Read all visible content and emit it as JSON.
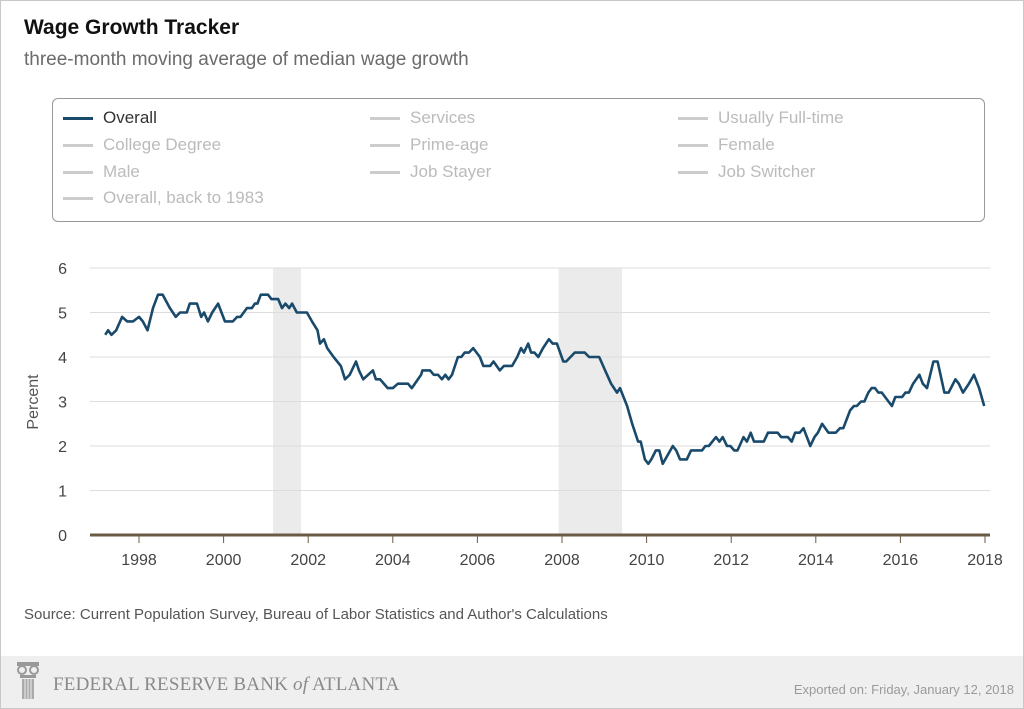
{
  "header": {
    "title": "Wage Growth Tracker",
    "subtitle": "three-month moving average of median wage growth"
  },
  "legend": {
    "items": [
      {
        "label": "Overall",
        "active": true
      },
      {
        "label": "Services",
        "active": false
      },
      {
        "label": "Usually Full-time",
        "active": false
      },
      {
        "label": "College Degree",
        "active": false
      },
      {
        "label": "Prime-age",
        "active": false
      },
      {
        "label": "Female",
        "active": false
      },
      {
        "label": "Male",
        "active": false
      },
      {
        "label": "Job Stayer",
        "active": false
      },
      {
        "label": "Job Switcher",
        "active": false
      },
      {
        "label": "Overall, back to 1983",
        "active": false
      }
    ]
  },
  "source": "Source: Current Population Survey, Bureau of Labor Statistics and Author's Calculations",
  "footer": {
    "logo": "FEDERAL RESERVE BANK of ATLANTA",
    "exported": "Exported on: Friday, January 12, 2018"
  },
  "colors": {
    "line": "#1a4a6b",
    "recession": "#ebebeb",
    "baseline": "#6b5a45",
    "grid": "#dddddd"
  },
  "chart_data": {
    "type": "line",
    "ylabel": "Percent",
    "xlabel": "",
    "ylim": [
      0,
      6
    ],
    "xlim": [
      1996.8,
      2018.1
    ],
    "yticks": [
      "0",
      "1",
      "2",
      "3",
      "4",
      "5",
      "6"
    ],
    "xticks": [
      "1998",
      "2000",
      "2002",
      "2004",
      "2006",
      "2008",
      "2010",
      "2012",
      "2014",
      "2016",
      "2018"
    ],
    "grid": true,
    "recessions": [
      [
        2001.17,
        2001.83
      ],
      [
        2007.92,
        2009.42
      ]
    ],
    "series": [
      {
        "name": "Overall",
        "x": [
          1997.2,
          1997.27,
          1997.35,
          1997.46,
          1997.6,
          1997.72,
          1997.86,
          1998.0,
          1998.09,
          1998.2,
          1998.33,
          1998.45,
          1998.56,
          1998.73,
          1998.87,
          1998.97,
          1999.13,
          1999.2,
          1999.37,
          1999.47,
          1999.54,
          1999.63,
          1999.73,
          1999.87,
          2000.03,
          2000.22,
          2000.32,
          2000.4,
          2000.55,
          2000.67,
          2000.74,
          2000.8,
          2000.88,
          2001.05,
          2001.13,
          2001.29,
          2001.38,
          2001.46,
          2001.55,
          2001.62,
          2001.73,
          2001.97,
          2002.09,
          2002.22,
          2002.28,
          2002.37,
          2002.45,
          2002.6,
          2002.77,
          2002.87,
          2002.98,
          2003.13,
          2003.2,
          2003.3,
          2003.53,
          2003.6,
          2003.7,
          2003.88,
          2004.0,
          2004.12,
          2004.36,
          2004.45,
          2004.67,
          2004.7,
          2004.88,
          2004.97,
          2005.07,
          2005.16,
          2005.24,
          2005.32,
          2005.4,
          2005.54,
          2005.62,
          2005.7,
          2005.8,
          2005.9,
          2006.06,
          2006.14,
          2006.3,
          2006.38,
          2006.53,
          2006.63,
          2006.82,
          2006.94,
          2007.03,
          2007.1,
          2007.2,
          2007.27,
          2007.35,
          2007.44,
          2007.55,
          2007.69,
          2007.78,
          2007.88,
          2008.03,
          2008.1,
          2008.3,
          2008.54,
          2008.64,
          2008.88,
          2009.02,
          2009.16,
          2009.3,
          2009.37,
          2009.54,
          2009.66,
          2009.8,
          2009.86,
          2009.96,
          2010.04,
          2010.11,
          2010.22,
          2010.3,
          2010.38,
          2010.5,
          2010.62,
          2010.7,
          2010.79,
          2010.95,
          2011.05,
          2011.31,
          2011.39,
          2011.47,
          2011.64,
          2011.72,
          2011.8,
          2011.9,
          2011.98,
          2012.07,
          2012.15,
          2012.29,
          2012.37,
          2012.46,
          2012.54,
          2012.77,
          2012.87,
          2013.1,
          2013.18,
          2013.34,
          2013.43,
          2013.51,
          2013.62,
          2013.71,
          2013.87,
          2013.97,
          2014.05,
          2014.15,
          2014.3,
          2014.47,
          2014.57,
          2014.65,
          2014.81,
          2014.9,
          2014.97,
          2015.07,
          2015.15,
          2015.24,
          2015.32,
          2015.4,
          2015.48,
          2015.56,
          2015.8,
          2015.88,
          2016.04,
          2016.12,
          2016.2,
          2016.3,
          2016.45,
          2016.53,
          2016.63,
          2016.78,
          2016.88,
          2017.04,
          2017.14,
          2017.3,
          2017.38,
          2017.48,
          2017.62,
          2017.74,
          2017.86,
          2017.98
        ],
        "y": [
          4.5,
          4.6,
          4.5,
          4.6,
          4.9,
          4.8,
          4.8,
          4.9,
          4.8,
          4.6,
          5.1,
          5.4,
          5.4,
          5.1,
          4.9,
          5.0,
          5.0,
          5.2,
          5.2,
          4.9,
          5.0,
          4.8,
          5.0,
          5.2,
          4.8,
          4.8,
          4.9,
          4.9,
          5.1,
          5.1,
          5.2,
          5.2,
          5.4,
          5.4,
          5.3,
          5.3,
          5.1,
          5.2,
          5.1,
          5.2,
          5.0,
          5.0,
          4.8,
          4.6,
          4.3,
          4.4,
          4.2,
          4.0,
          3.8,
          3.5,
          3.6,
          3.9,
          3.7,
          3.5,
          3.7,
          3.5,
          3.5,
          3.3,
          3.3,
          3.4,
          3.4,
          3.3,
          3.6,
          3.7,
          3.7,
          3.6,
          3.6,
          3.5,
          3.6,
          3.5,
          3.6,
          4.0,
          4.0,
          4.1,
          4.1,
          4.2,
          4.0,
          3.8,
          3.8,
          3.9,
          3.7,
          3.8,
          3.8,
          4.0,
          4.2,
          4.1,
          4.3,
          4.1,
          4.1,
          4.0,
          4.2,
          4.4,
          4.3,
          4.3,
          3.9,
          3.9,
          4.1,
          4.1,
          4.0,
          4.0,
          3.7,
          3.4,
          3.2,
          3.3,
          2.9,
          2.5,
          2.1,
          2.1,
          1.7,
          1.6,
          1.7,
          1.9,
          1.9,
          1.6,
          1.8,
          2.0,
          1.9,
          1.7,
          1.7,
          1.9,
          1.9,
          2.0,
          2.0,
          2.2,
          2.1,
          2.2,
          2.0,
          2.0,
          1.9,
          1.9,
          2.2,
          2.1,
          2.3,
          2.1,
          2.1,
          2.3,
          2.3,
          2.2,
          2.2,
          2.1,
          2.3,
          2.3,
          2.4,
          2.0,
          2.2,
          2.3,
          2.5,
          2.3,
          2.3,
          2.4,
          2.4,
          2.8,
          2.9,
          2.9,
          3.0,
          3.0,
          3.2,
          3.3,
          3.3,
          3.2,
          3.2,
          2.9,
          3.1,
          3.1,
          3.2,
          3.2,
          3.4,
          3.6,
          3.4,
          3.3,
          3.9,
          3.9,
          3.2,
          3.2,
          3.5,
          3.4,
          3.2,
          3.4,
          3.6,
          3.3,
          2.9
        ]
      }
    ]
  }
}
